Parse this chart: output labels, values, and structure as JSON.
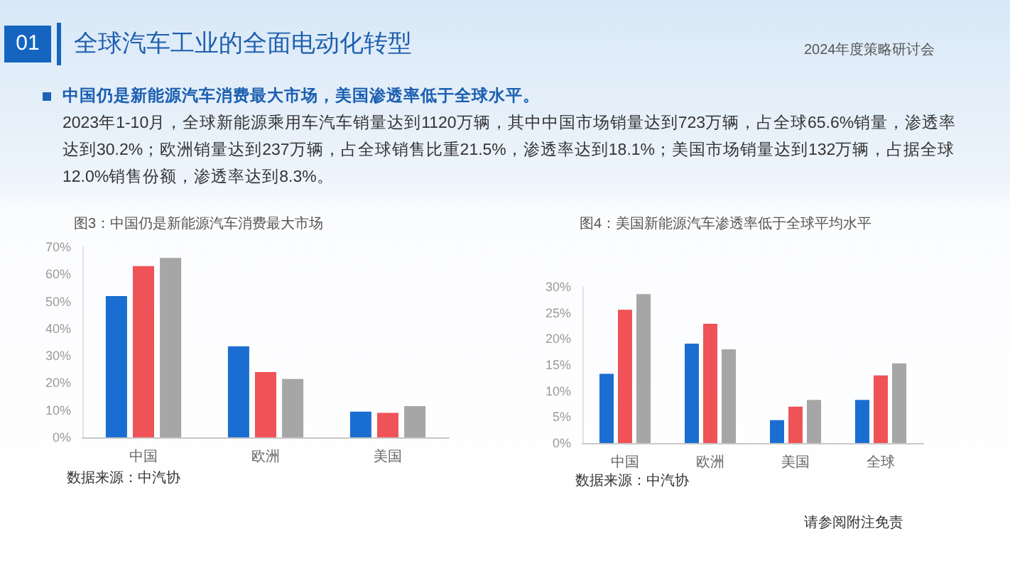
{
  "chart_data": [
    {
      "type": "other",
      "title": "全球汽车工业的全面电动化转型",
      "subtitle": "中国仍是新能源汽车消费最大市场，美国渗透率低于全球水平。",
      "annotations": [
        "01",
        "2024年度策略研讨会",
        "2023年1-10月，全球新能源乘用车汽车销量达到1120万辆，其中中国市场销量达到723万辆，占全球65.6%销量，渗透率达到30.2%；欧洲销量达到237万辆，占全球销售比重21.5%，渗透率达到18.1%；美国市场销量达到132万辆，占据全球12.0%销售份额，渗透率达到8.3%。",
        "请参阅附注免责"
      ]
    },
    {
      "type": "bar",
      "title": "图3：中国仍是新能源汽车消费最大市场",
      "categories": [
        "中国",
        "欧洲",
        "美国"
      ],
      "series": [
        {
          "color": "#1b6ed1",
          "values": [
            52,
            33.5,
            9.5
          ]
        },
        {
          "color": "#ef5358",
          "values": [
            63,
            24,
            9
          ]
        },
        {
          "color": "#a6a6a6",
          "values": [
            66,
            21.5,
            11.5
          ]
        }
      ],
      "ylim": [
        0,
        70
      ],
      "yticks": [
        {
          "value": 0,
          "label": "0%"
        },
        {
          "value": 10,
          "label": "10%"
        },
        {
          "value": 20,
          "label": "20%"
        },
        {
          "value": 30,
          "label": "30%"
        },
        {
          "value": 40,
          "label": "40%"
        },
        {
          "value": 50,
          "label": "50%"
        },
        {
          "value": 60,
          "label": "60%"
        },
        {
          "value": 70,
          "label": "70%"
        }
      ],
      "annotations": [
        "数据来源：中汽协"
      ]
    },
    {
      "type": "bar",
      "title": "图4：美国新能源汽车渗透率低于全球平均水平",
      "categories": [
        "中国",
        "欧洲",
        "美国",
        "全球"
      ],
      "series": [
        {
          "color": "#1b6ed1",
          "values": [
            13.3,
            19.1,
            4.4,
            8.3
          ]
        },
        {
          "color": "#ef5358",
          "values": [
            25.6,
            22.9,
            7.0,
            13.0
          ]
        },
        {
          "color": "#a6a6a6",
          "values": [
            28.6,
            18.0,
            8.3,
            15.3
          ]
        }
      ],
      "ylim": [
        0,
        30
      ],
      "yticks": [
        {
          "value": 0,
          "label": "0%"
        },
        {
          "value": 5,
          "label": "5%"
        },
        {
          "value": 10,
          "label": "10%"
        },
        {
          "value": 15,
          "label": "15%"
        },
        {
          "value": 20,
          "label": "20%"
        },
        {
          "value": 25,
          "label": "25%"
        },
        {
          "value": 30,
          "label": "30%"
        }
      ],
      "annotations": [
        "数据来源：中汽协"
      ]
    }
  ]
}
